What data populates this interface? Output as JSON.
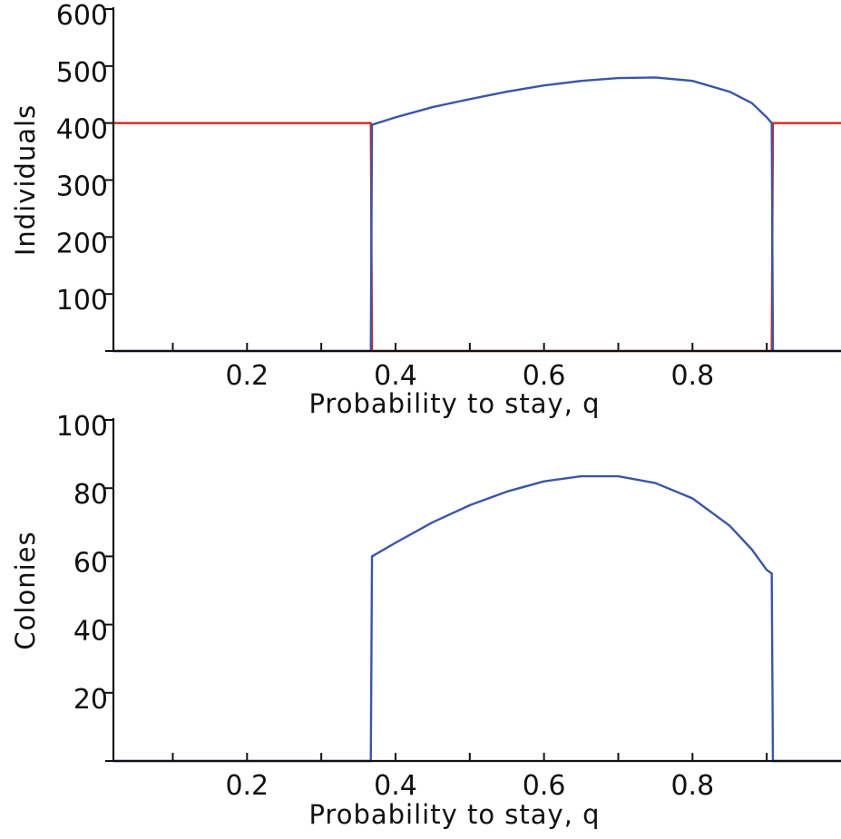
{
  "chart_data": [
    {
      "type": "line",
      "xlabel": "Probability to stay, q",
      "ylabel": "Individuals",
      "xlim": [
        0.02,
        1.0
      ],
      "ylim": [
        0,
        600
      ],
      "xticks": [
        0.1,
        0.2,
        0.3,
        0.4,
        0.5,
        0.6,
        0.7,
        0.8,
        0.9
      ],
      "xtick_labels": {
        "0.2": "0.2",
        "0.4": "0.4",
        "0.6": "0.6",
        "0.8": "0.8"
      },
      "yticks": [
        0,
        100,
        200,
        300,
        400,
        500,
        600
      ],
      "ytick_labels": {
        "100": "100",
        "200": "200",
        "300": "300",
        "400": "400",
        "500": "500",
        "600": "600"
      },
      "grid": false,
      "series": [
        {
          "color": "#e0231c",
          "x": [
            0.02,
            0.3667,
            0.3683,
            0.9067,
            0.9083,
            1.0
          ],
          "y": [
            400,
            400,
            0,
            0,
            400,
            400
          ]
        },
        {
          "color": "#3a56a8",
          "x": [
            0.02,
            0.3667,
            0.3683,
            0.4,
            0.45,
            0.5,
            0.55,
            0.6,
            0.65,
            0.7,
            0.75,
            0.8,
            0.85,
            0.88,
            0.9,
            0.9067,
            0.9083,
            1.0
          ],
          "y": [
            0,
            0,
            397,
            410,
            428,
            442,
            455,
            466,
            474,
            479,
            480,
            474,
            455,
            435,
            410,
            400,
            0,
            0
          ]
        }
      ]
    },
    {
      "type": "line",
      "xlabel": "Probability to stay, q",
      "ylabel": "Colonies",
      "xlim": [
        0.02,
        1.0
      ],
      "ylim": [
        0,
        100
      ],
      "xticks": [
        0.1,
        0.2,
        0.3,
        0.4,
        0.5,
        0.6,
        0.7,
        0.8,
        0.9
      ],
      "xtick_labels": {
        "0.2": "0.2",
        "0.4": "0.4",
        "0.6": "0.6",
        "0.8": "0.8"
      },
      "yticks": [
        0,
        20,
        40,
        60,
        80,
        100
      ],
      "ytick_labels": {
        "20": "20",
        "40": "40",
        "60": "60",
        "80": "80",
        "100": "100"
      },
      "grid": false,
      "series": [
        {
          "color": "#3a56a8",
          "x": [
            0.02,
            0.3667,
            0.3683,
            0.4,
            0.45,
            0.5,
            0.55,
            0.6,
            0.65,
            0.7,
            0.75,
            0.8,
            0.85,
            0.88,
            0.9,
            0.9067,
            0.9083,
            1.0
          ],
          "y": [
            0,
            0,
            60,
            64,
            70,
            75,
            79,
            82,
            83.5,
            83.5,
            81.5,
            77,
            69,
            62,
            56,
            55,
            0,
            0
          ]
        }
      ]
    }
  ]
}
